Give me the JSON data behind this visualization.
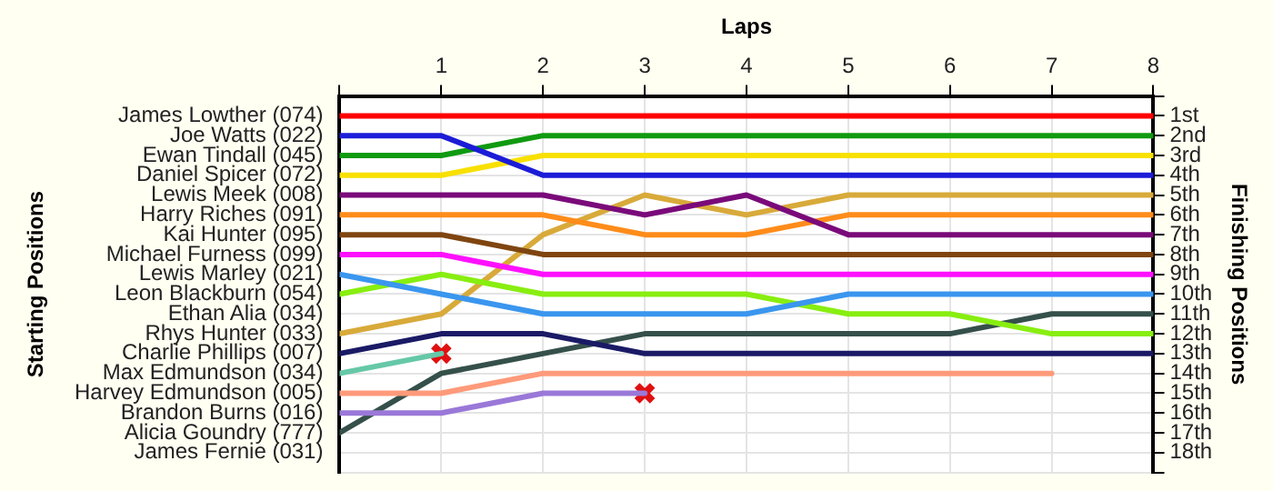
{
  "chart_data": {
    "type": "line",
    "xlabel": "Laps",
    "ylabel": "Finishing Positions",
    "x": [
      0,
      1,
      2,
      3,
      4,
      5,
      6,
      7,
      8
    ],
    "xlim": [
      0,
      8
    ],
    "xticks": [
      {
        "value": 0,
        "label": null
      },
      1,
      2,
      3,
      4,
      5,
      6,
      7,
      8
    ],
    "ylim": [
      19,
      0
    ],
    "yticks": [
      {
        "value": 0,
        "label": null
      },
      {
        "value": 1,
        "label": "1st"
      },
      {
        "value": 2,
        "label": "2nd"
      },
      {
        "value": 3,
        "label": "3rd"
      },
      {
        "value": 4,
        "label": "4th"
      },
      {
        "value": 5,
        "label": "5th"
      },
      {
        "value": 6,
        "label": "6th"
      },
      {
        "value": 7,
        "label": "7th"
      },
      {
        "value": 8,
        "label": "8th"
      },
      {
        "value": 9,
        "label": "9th"
      },
      {
        "value": 10,
        "label": "10th"
      },
      {
        "value": 11,
        "label": "11th"
      },
      {
        "value": 12,
        "label": "12th"
      },
      {
        "value": 13,
        "label": "13th"
      },
      {
        "value": 14,
        "label": "14th"
      },
      {
        "value": 15,
        "label": "15th"
      },
      {
        "value": 16,
        "label": "16th"
      },
      {
        "value": 17,
        "label": "17th"
      },
      {
        "value": 18,
        "label": "18th"
      },
      {
        "value": 19,
        "label": null
      }
    ],
    "annotations": [
      "Starting Positions",
      "James Lowther (074)",
      "Joe Watts (022)",
      "Ewan Tindall (045)",
      "Daniel Spicer (072)",
      "Lewis Meek (008)",
      "Harry Riches (091)",
      "Kai Hunter (095)",
      "Michael Furness (099)",
      "Lewis Marley (021)",
      "Leon Blackburn (054)",
      "Ethan Alia (034)",
      "Rhys Hunter (033)",
      "Charlie Phillips (007)",
      "Max Edmundson (034)",
      "Harvey Edmundson (005)",
      "Brandon Burns (016)",
      "Alicia Goundry (777)",
      "James Fernie (031)"
    ],
    "grid": true,
    "legend": false,
    "marker": "none",
    "line_style": "solid",
    "series": [
      {
        "color": "#ff0000",
        "values": [
          1,
          1,
          1,
          1,
          1,
          1,
          1,
          1,
          1
        ]
      },
      {
        "color": "#1c1cd8",
        "values": [
          2,
          2,
          4,
          4,
          4,
          4,
          4,
          4,
          4
        ]
      },
      {
        "color": "#109a10",
        "values": [
          3,
          3,
          2,
          2,
          2,
          2,
          2,
          2,
          2
        ]
      },
      {
        "color": "#f8e000",
        "values": [
          4,
          4,
          3,
          3,
          3,
          3,
          3,
          3,
          3
        ]
      },
      {
        "color": "#7a0a7a",
        "values": [
          5,
          5,
          5,
          6,
          5,
          7,
          7,
          7,
          7
        ]
      },
      {
        "color": "#ff8c1a",
        "values": [
          6,
          6,
          6,
          7,
          7,
          6,
          6,
          6,
          6
        ]
      },
      {
        "color": "#7f4510",
        "values": [
          7,
          7,
          8,
          8,
          8,
          8,
          8,
          8,
          8
        ]
      },
      {
        "color": "#ff10ff",
        "values": [
          8,
          8,
          9,
          9,
          9,
          9,
          9,
          9,
          9
        ]
      },
      {
        "color": "#3a96ee",
        "values": [
          9,
          10,
          11,
          11,
          11,
          10,
          10,
          10,
          10
        ]
      },
      {
        "color": "#88ee10",
        "values": [
          10,
          9,
          10,
          10,
          10,
          11,
          11,
          12,
          12
        ]
      },
      {
        "color": "#d8aa3a",
        "values": [
          12,
          11,
          7,
          5,
          6,
          5,
          5,
          5,
          5
        ]
      },
      {
        "color": "#1a1a66",
        "values": [
          13,
          12,
          12,
          13,
          13,
          13,
          13,
          13,
          13
        ]
      },
      {
        "color": "#66c8a8",
        "values": [
          14,
          13,
          null,
          null,
          null,
          null,
          null,
          null,
          null
        ]
      },
      {
        "color": "#ff9a7a",
        "values": [
          15,
          15,
          14,
          14,
          14,
          14,
          14,
          14,
          null
        ]
      },
      {
        "color": "#9a78d8",
        "values": [
          16,
          16,
          15,
          15,
          null,
          null,
          null,
          null,
          null
        ]
      },
      {
        "color": "#35504a",
        "values": [
          17,
          14,
          13,
          12,
          12,
          12,
          12,
          11,
          11
        ]
      },
      {
        "type": "scatter",
        "color": "#e01010",
        "marker": "cross",
        "x": [
          1,
          3
        ],
        "values": [
          13,
          15
        ]
      }
    ]
  }
}
